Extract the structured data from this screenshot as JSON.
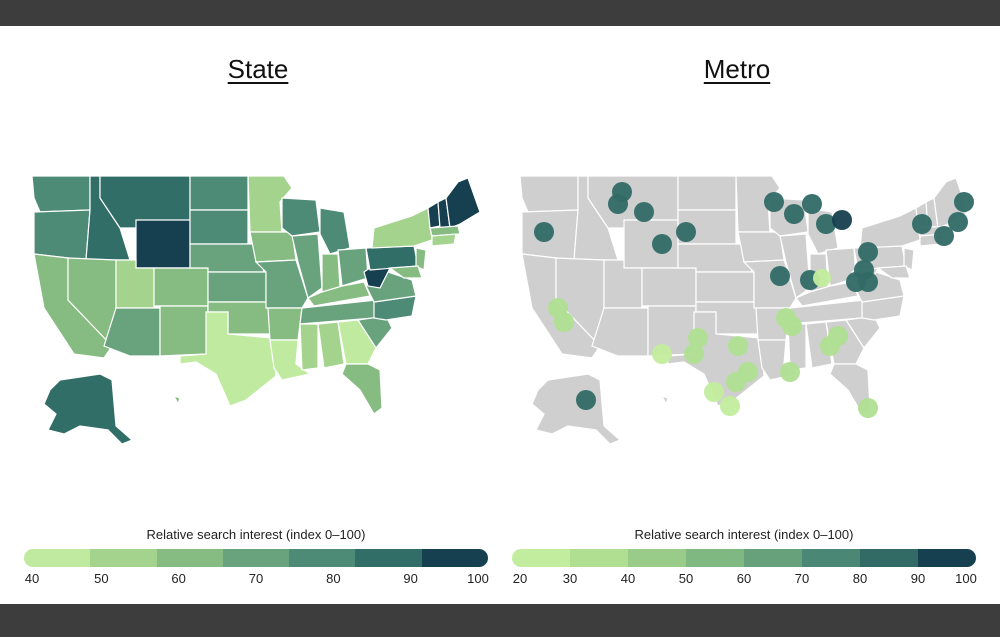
{
  "panels": {
    "state": {
      "title": "State",
      "legend_title": "Relative search interest (index 0–100)",
      "ticks": [
        "40",
        "50",
        "60",
        "70",
        "80",
        "90",
        "100"
      ],
      "colors": [
        "#bfeaa0",
        "#a3d38c",
        "#86bb82",
        "#69a37e",
        "#4d8b77",
        "#326e68",
        "#163f4f"
      ]
    },
    "metro": {
      "title": "Metro",
      "legend_title": "Relative search interest (index 0–100)",
      "ticks": [
        "20",
        "30",
        "40",
        "50",
        "60",
        "70",
        "80",
        "90",
        "100"
      ],
      "colors": [
        "#c2ed9e",
        "#b0df92",
        "#99cc88",
        "#80b882",
        "#67a17c",
        "#4b8775",
        "#326a66",
        "#163f4f"
      ]
    }
  },
  "colors": {
    "background": "#ffffff",
    "frame": "#3d3d3d",
    "metro_base_map": "#cfcfcf",
    "state_border": "#ffffff"
  }
}
